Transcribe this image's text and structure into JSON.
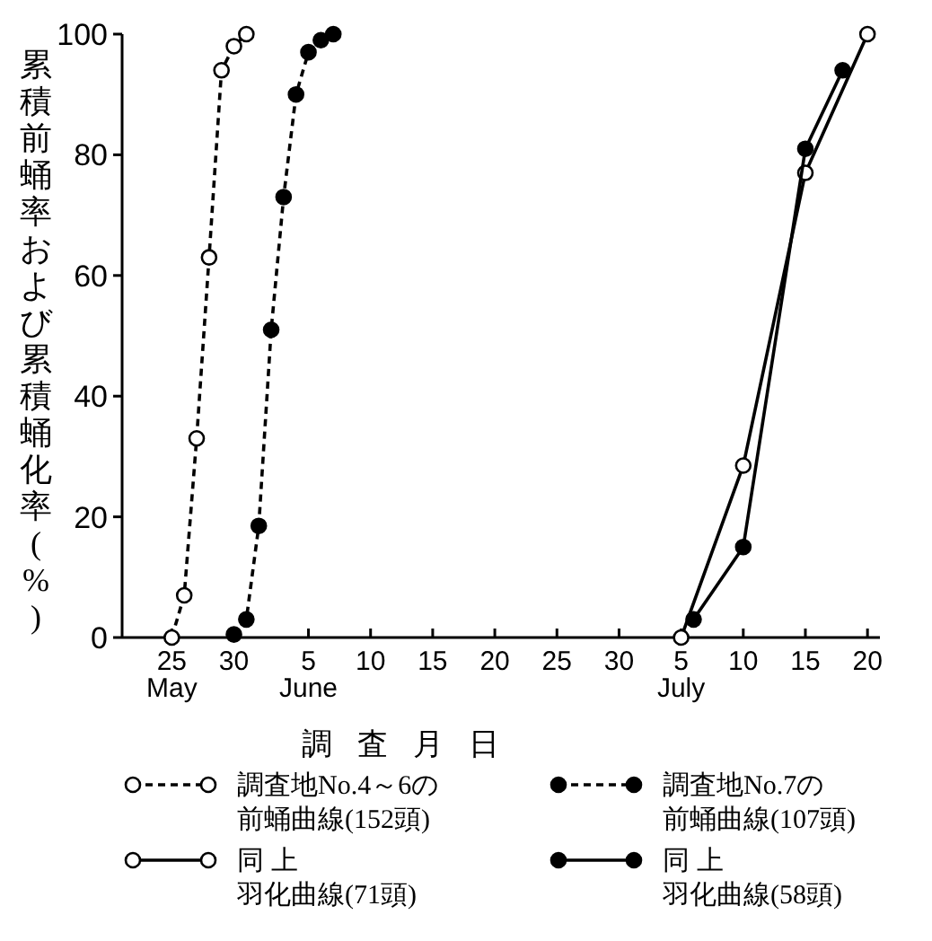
{
  "chart_data": {
    "type": "line",
    "xlabel": "調査月日",
    "ylabel": "累積前蛹率および累積蛹化率(%)",
    "xlim": [
      "--05-21",
      "--07-21"
    ],
    "xticks": [
      {
        "value": "--05-25",
        "label": "25\nMay"
      },
      {
        "value": "--05-30",
        "label": "30"
      },
      {
        "value": "--06-05",
        "label": "5\nJune"
      },
      {
        "value": "--06-10",
        "label": "10"
      },
      {
        "value": "--06-15",
        "label": "15"
      },
      {
        "value": "--06-20",
        "label": "20"
      },
      {
        "value": "--06-25",
        "label": "25"
      },
      {
        "value": "--06-30",
        "label": "30"
      },
      {
        "value": "--07-05",
        "label": "5\nJuly"
      },
      {
        "value": "--07-10",
        "label": "10"
      },
      {
        "value": "--07-15",
        "label": "15"
      },
      {
        "value": "--07-20",
        "label": "20"
      }
    ],
    "ylim": [
      0,
      100
    ],
    "yticks": [
      0,
      20,
      40,
      60,
      80,
      100
    ],
    "grid": false,
    "legend": "bottom",
    "marker": "circle",
    "series": [
      {
        "name": "調査地No.4～6の前蛹曲線(152頭)",
        "color": "#ffffff",
        "line_style": "dashed",
        "x": [
          "--05-25",
          "--05-26",
          "--05-27",
          "--05-28",
          "--05-29",
          "--05-30",
          "--05-31"
        ],
        "values": [
          0,
          7,
          33,
          63,
          94,
          98,
          100
        ]
      },
      {
        "name": "調査地No.7の前蛹曲線(107頭)",
        "color": "#000000",
        "line_style": "dashed",
        "x": [
          "--05-30",
          "--05-31",
          "--06-01",
          "--06-02",
          "--06-03",
          "--06-04",
          "--06-05",
          "--06-06",
          "--06-07"
        ],
        "values": [
          0.5,
          3,
          18.5,
          51,
          73,
          90,
          97,
          99,
          100
        ]
      },
      {
        "name": "同 上羽化曲線(71頭)",
        "color": "#ffffff",
        "line_style": "solid",
        "x": [
          "--07-05",
          "--07-10",
          "--07-15",
          "--07-20"
        ],
        "values": [
          0,
          28.5,
          77,
          100
        ]
      },
      {
        "name": "同 上羽化曲線(58頭)",
        "color": "#000000",
        "line_style": "solid",
        "x": [
          "--07-06",
          "--07-10",
          "--07-15",
          "--07-18"
        ],
        "values": [
          3,
          15,
          81,
          94
        ]
      }
    ]
  }
}
